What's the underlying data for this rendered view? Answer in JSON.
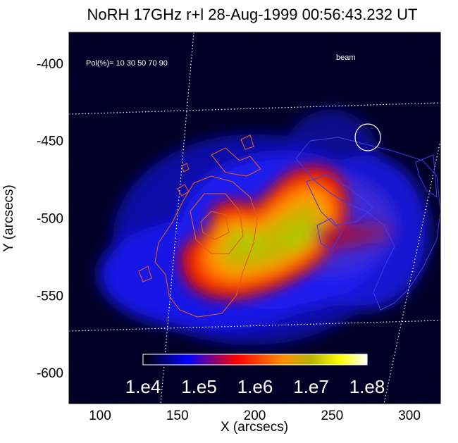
{
  "chart_data": {
    "type": "heatmap",
    "title": "NoRH 17GHz r+l 28-Aug-1999 00:56:43.232 UT",
    "xlabel": "X (arcsecs)",
    "ylabel": "Y (arcsecs)",
    "xlim": [
      80,
      320
    ],
    "ylim": [
      -620,
      -380
    ],
    "x_ticks": [
      100,
      150,
      200,
      250,
      300
    ],
    "y_ticks": [
      -400,
      -450,
      -500,
      -550,
      -600
    ],
    "x_tick_labels": [
      "100",
      "150",
      "200",
      "250",
      "300"
    ],
    "y_tick_labels": [
      "-400",
      "-450",
      "-500",
      "-550",
      "-600"
    ],
    "colormap": [
      "#000000",
      "#0000ff",
      "#ff0000",
      "#ff8c00",
      "#b4b400",
      "#ffff00",
      "#ffffff"
    ],
    "colorbar": {
      "scale": "log",
      "range": [
        10000,
        100000000
      ],
      "tick_labels": [
        "1.e4",
        "1.e5",
        "1.e6",
        "1.e7",
        "1.e8"
      ]
    },
    "annotations": {
      "pol_label": "Pol(%)= 10 30 50 70 90",
      "beam_label": "beam"
    },
    "contour_colors": {
      "positive_polarization": "#e05a1e",
      "negative_polarization": "#3434e6",
      "beam": "#ffffff",
      "heliographic_grid": "#ffffff"
    },
    "grid": true
  }
}
